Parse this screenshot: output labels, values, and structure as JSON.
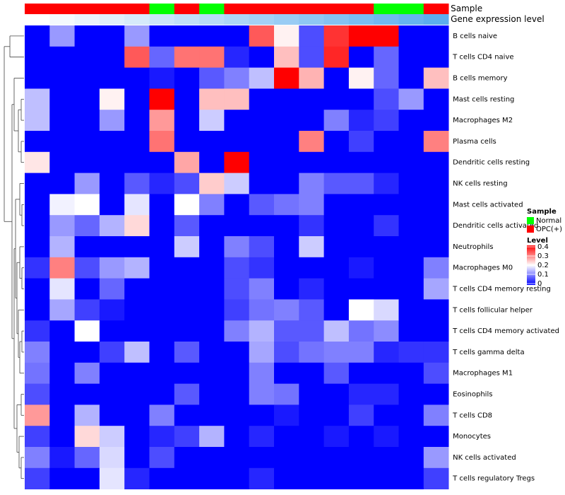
{
  "chart_data": {
    "type": "heatmap",
    "annotation_tracks": [
      {
        "name": "Sample",
        "colors": [
          "#FF0000",
          "#FF0000",
          "#FF0000",
          "#FF0000",
          "#FF0000",
          "#00FF00",
          "#FF0000",
          "#00FF00",
          "#FF0000",
          "#FF0000",
          "#FF0000",
          "#FF0000",
          "#FF0000",
          "#FF0000",
          "#00FF00",
          "#00FF00",
          "#FF0000"
        ]
      },
      {
        "name": "Gene expression level",
        "colors": [
          "#FFFFFF",
          "#F4F9FD",
          "#EAF4FC",
          "#E0EFFB",
          "#D6EAFA",
          "#CBE5F9",
          "#C1E0F8",
          "#B7DBF7",
          "#ADD6F6",
          "#A3D1F5",
          "#99CCF4",
          "#8FC7F3",
          "#85C2F2",
          "#7ABDF1",
          "#70B8F0",
          "#66B3EF",
          "#5CAEEE"
        ]
      }
    ],
    "rows": [
      "B cells naive",
      "T cells CD4 naive",
      "B cells memory",
      "Mast cells resting",
      "Macrophages M2",
      "Plasma cells",
      "Dendritic cells resting",
      "NK cells resting",
      "Mast cells activated",
      "Dendritic cells activated",
      "Neutrophils",
      "Macrophages M0",
      "T cells CD4 memory resting",
      "T cells follicular helper",
      "T cells CD4 memory activated",
      "T cells gamma delta",
      "Macrophages M1",
      "Eosinophils",
      "T cells CD8",
      "Monocytes",
      "NK cells activated",
      "T cells regulatory  Tregs"
    ],
    "values": [
      [
        0,
        0.12,
        0,
        0,
        0.12,
        0,
        0,
        0,
        0,
        0.33,
        0.21,
        0.06,
        0.36,
        0.4,
        0.4,
        0,
        0
      ],
      [
        0,
        0,
        0,
        0,
        0.33,
        0.08,
        0.31,
        0.31,
        0.03,
        0,
        0.25,
        0.06,
        0.37,
        0,
        0.08,
        0,
        0
      ],
      [
        0,
        0,
        0,
        0,
        0,
        0.02,
        0,
        0.07,
        0.1,
        0.15,
        0.4,
        0.26,
        0,
        0.21,
        0.08,
        0,
        0.25
      ],
      [
        0.15,
        0,
        0,
        0.21,
        0,
        0.4,
        0,
        0.25,
        0.25,
        0,
        0,
        0,
        0,
        0,
        0.06,
        0.12,
        0
      ],
      [
        0.15,
        0,
        0,
        0.12,
        0,
        0.28,
        0,
        0.16,
        0,
        0,
        0,
        0,
        0.1,
        0.03,
        0.05,
        0,
        0
      ],
      [
        0,
        0,
        0,
        0,
        0,
        0.31,
        0,
        0,
        0,
        0,
        0,
        0.3,
        0,
        0.05,
        0,
        0,
        0.3
      ],
      [
        0.22,
        0,
        0,
        0,
        0,
        0,
        0.27,
        0,
        0.4,
        0,
        0,
        0,
        0,
        0,
        0,
        0,
        0
      ],
      [
        0,
        0,
        0.12,
        0,
        0.07,
        0.03,
        0.06,
        0.24,
        0.16,
        0,
        0,
        0.1,
        0.07,
        0.07,
        0.03,
        0,
        0
      ],
      [
        0,
        0.19,
        0.2,
        0,
        0.18,
        0,
        0.2,
        0.1,
        0,
        0.07,
        0.09,
        0.1,
        0,
        0,
        0,
        0,
        0
      ],
      [
        0,
        0.12,
        0.08,
        0.14,
        0.23,
        0,
        0.07,
        0,
        0,
        0,
        0,
        0.04,
        0,
        0,
        0.04,
        0,
        0
      ],
      [
        0,
        0.14,
        0,
        0,
        0,
        0,
        0.16,
        0,
        0.1,
        0.06,
        0,
        0.16,
        0,
        0,
        0,
        0,
        0
      ],
      [
        0.04,
        0.3,
        0.06,
        0.12,
        0.14,
        0,
        0,
        0,
        0.06,
        0.04,
        0,
        0,
        0,
        0.02,
        0,
        0,
        0.1
      ],
      [
        0,
        0.18,
        0,
        0.08,
        0,
        0,
        0,
        0,
        0.06,
        0.1,
        0,
        0.03,
        0,
        0,
        0,
        0,
        0.13
      ],
      [
        0,
        0.13,
        0.05,
        0.02,
        0,
        0,
        0,
        0,
        0.05,
        0.09,
        0.1,
        0.07,
        0,
        0.2,
        0.17,
        0,
        0
      ],
      [
        0.04,
        0,
        0.2,
        0,
        0,
        0,
        0,
        0,
        0.1,
        0.14,
        0.07,
        0.07,
        0.15,
        0.09,
        0.11,
        0,
        0
      ],
      [
        0.1,
        0,
        0,
        0.05,
        0.15,
        0,
        0.07,
        0,
        0,
        0.13,
        0.06,
        0.09,
        0.1,
        0.1,
        0.03,
        0.04,
        0.04
      ],
      [
        0.09,
        0,
        0.1,
        0,
        0,
        0,
        0,
        0,
        0,
        0.1,
        0,
        0,
        0.07,
        0,
        0,
        0,
        0.06
      ],
      [
        0.06,
        0,
        0,
        0,
        0,
        0,
        0.07,
        0,
        0,
        0.1,
        0.09,
        0,
        0,
        0.03,
        0.03,
        0,
        0
      ],
      [
        0.28,
        0,
        0.14,
        0,
        0,
        0.1,
        0,
        0,
        0,
        0,
        0.02,
        0,
        0,
        0.05,
        0,
        0,
        0.1
      ],
      [
        0.05,
        0,
        0.23,
        0.16,
        0,
        0.03,
        0.05,
        0.14,
        0,
        0.03,
        0,
        0,
        0.02,
        0,
        0.02,
        0,
        0
      ],
      [
        0.1,
        0.02,
        0.08,
        0.17,
        0,
        0.06,
        0,
        0,
        0,
        0,
        0,
        0,
        0,
        0,
        0,
        0,
        0.12
      ],
      [
        0.05,
        0,
        0,
        0.18,
        0.03,
        0,
        0,
        0,
        0,
        0.03,
        0,
        0,
        0,
        0,
        0,
        0,
        0.05
      ]
    ],
    "color_scale": {
      "min": 0,
      "max": 0.4,
      "low": "#0000FF",
      "mid": "#FFFFFF",
      "high": "#FF0000"
    },
    "legend": {
      "sample_title": "Sample",
      "sample_entries": [
        {
          "label": "Normal",
          "color": "#00FF00"
        },
        {
          "label": "OPC(+)",
          "color": "#FF0000"
        }
      ],
      "level_title": "Level",
      "level_ticks": [
        "0.4",
        "0.3",
        "0.2",
        "0.1",
        "0"
      ]
    }
  }
}
